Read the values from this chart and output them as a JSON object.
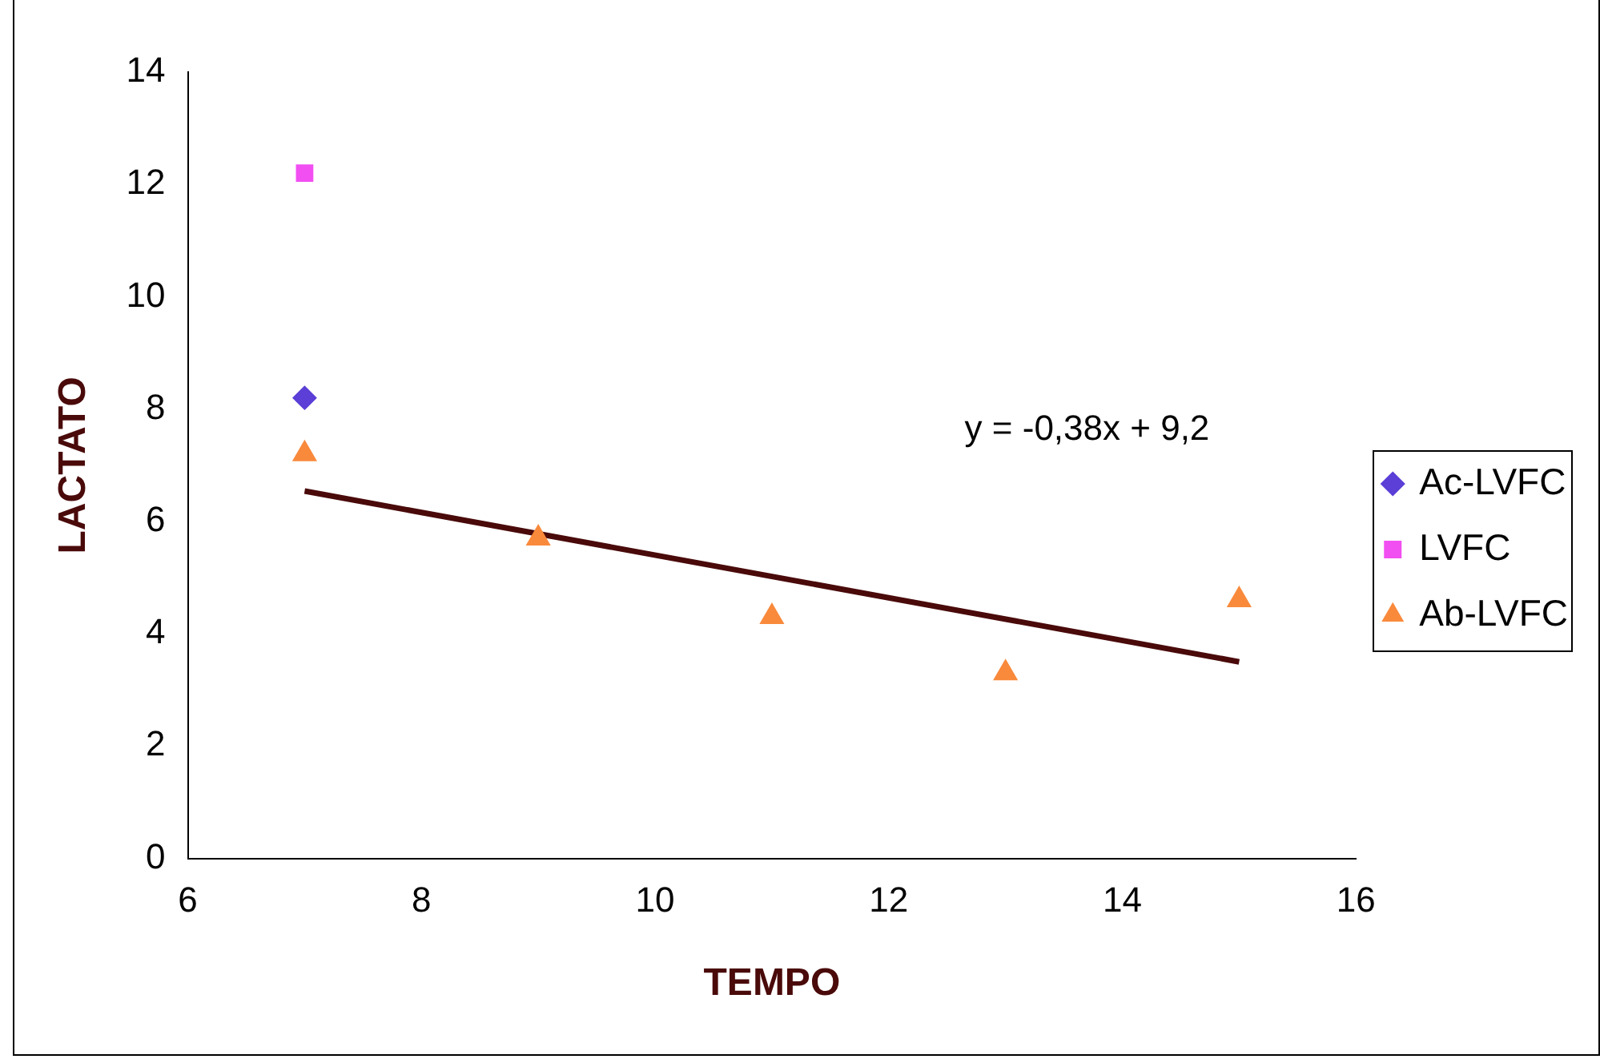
{
  "chart_data": {
    "type": "scatter",
    "xlabel": "TEMPO",
    "ylabel": "LACTATO",
    "xlim": [
      6,
      16
    ],
    "ylim": [
      0,
      14
    ],
    "xticks": [
      6,
      8,
      10,
      12,
      14,
      16
    ],
    "yticks": [
      0,
      2,
      4,
      6,
      8,
      10,
      12,
      14
    ],
    "grid": false,
    "legend": "right",
    "annotations": [
      "y = -0,38x + 9,2"
    ],
    "series": [
      {
        "name": "Ac-LVFC",
        "color": "#5b3fd6",
        "marker": "diamond",
        "x": [
          7
        ],
        "values": [
          8.2
        ]
      },
      {
        "name": "LVFC",
        "color": "#f24ff2",
        "marker": "square",
        "x": [
          7
        ],
        "values": [
          12.2
        ]
      },
      {
        "name": "Ab-LVFC",
        "color": "#f98a3c",
        "marker": "triangle",
        "x": [
          7,
          9,
          11,
          13,
          15
        ],
        "values": [
          7.2,
          5.7,
          4.3,
          3.3,
          4.6
        ]
      },
      {
        "type": "line",
        "color": "#4a0a0a",
        "marker": "none",
        "line_style": "solid",
        "x": [
          7,
          15
        ],
        "values": [
          6.54,
          3.5
        ]
      }
    ]
  }
}
